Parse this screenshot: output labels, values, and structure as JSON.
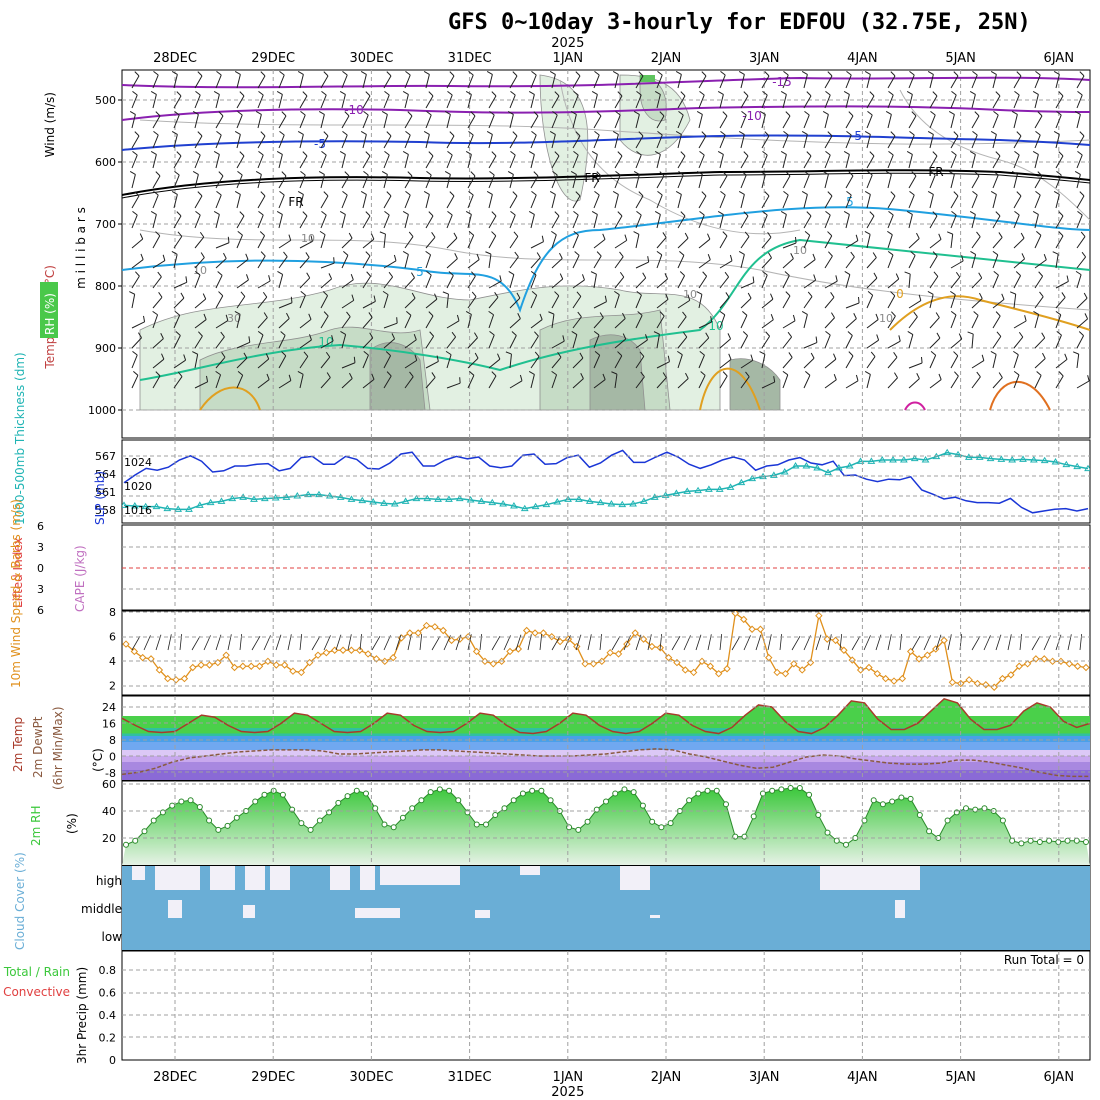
{
  "title": "GFS 0~10day 3-hourly for EDFOU (32.75E, 25N)",
  "colors": {
    "grid": "#a0a0a0",
    "rh_light": "#e2f0e2",
    "rh_mid": "#c6dcc6",
    "rh_dark": "#a5b8a5",
    "slp": "#1a36d6",
    "thickness": "#20b4b4",
    "wind10": "#e0901c",
    "barb": "#202020",
    "rh2m": "#3cc83c",
    "cloud": "#6aaed6",
    "temp_red": "#a83a2a",
    "dewpt": "#8a5a40"
  },
  "chart_data": [
    {
      "id": "upper",
      "type": "contour",
      "ylabel": "m i l l i b a r s",
      "side_labels": [
        "Wind (m/s)",
        "Temperature (°C)",
        "RH (%)"
      ],
      "y_ticks": [
        "500",
        "600",
        "700",
        "800",
        "900",
        "1000"
      ],
      "isotherm_labels": [
        "-15",
        "-10",
        "-10",
        "-5",
        "-5",
        "FR",
        "FR",
        "FR",
        "5",
        "5",
        "10",
        "10",
        "0"
      ],
      "rh_labels": [
        "10",
        "10",
        "10",
        "10",
        "30",
        "10"
      ]
    },
    {
      "id": "slp",
      "type": "line",
      "ylabel_left": "1000-500mb Thickness (dm)",
      "ylabel_right": "SLP (mb)",
      "left_ticks": [
        "567",
        "564",
        "561",
        "558"
      ],
      "right_ticks": [
        "1024",
        "1020",
        "1016"
      ],
      "series": [
        {
          "name": "SLP (mb)",
          "values": [
            1020.2,
            1021.5,
            1022.6,
            1022.3,
            1022.8,
            1024,
            1024.7,
            1023.8,
            1022,
            1022.2,
            1023,
            1023,
            1023.3,
            1023.4,
            1022.2,
            1022.6,
            1024.4,
            1024.6,
            1023.3,
            1023.3,
            1024.6,
            1024.1,
            1022.6,
            1022.5,
            1023.5,
            1025,
            1025.3,
            1023,
            1023,
            1024,
            1024.6,
            1024.2,
            1024.5,
            1023,
            1022.7,
            1023,
            1024.8,
            1025,
            1023.3,
            1023.4,
            1024.4,
            1024.8,
            1022.8,
            1023.5,
            1024.8,
            1025.6,
            1023.6,
            1023.6,
            1024.5,
            1025.3,
            1024.5,
            1023.3,
            1022.6,
            1023.2,
            1024,
            1024.5,
            1024,
            1022.3,
            1023,
            1023.2,
            1024,
            1024.4,
            1023.5,
            1023.2,
            1023.8,
            1021.4,
            1021.5,
            1020.8,
            1020.4,
            1020.8,
            1020.7,
            1021.2,
            1019,
            1018.3,
            1017.5,
            1017.8,
            1017.2,
            1016.9,
            1016.9,
            1016.8,
            1017.6,
            1016.1,
            1015.2,
            1015.5,
            1015.8,
            1015.9,
            1015.5,
            1015.9
          ]
        },
        {
          "name": "1000-500mb Thickness (dm)",
          "values": [
            559.6,
            559.5,
            559.4,
            559.4,
            559.1,
            559,
            559,
            559.6,
            560,
            560.2,
            560.6,
            560.8,
            560.5,
            560.6,
            560.7,
            560.8,
            561,
            561.2,
            561.2,
            561,
            560.8,
            560.5,
            560.3,
            560.1,
            559.9,
            559.8,
            560.2,
            560.6,
            560.6,
            560.5,
            560.5,
            560.6,
            560.4,
            560.2,
            560,
            559.8,
            559.5,
            559.1,
            559.4,
            559.7,
            560.1,
            560.5,
            560.5,
            560.2,
            560,
            559.8,
            559.7,
            559.8,
            560.2,
            560.8,
            561.1,
            561.4,
            561.7,
            561.8,
            562,
            562,
            562.3,
            563,
            563.6,
            563.9,
            564.1,
            564.6,
            565.5,
            565.5,
            565.2,
            564.5,
            565.2,
            565.5,
            566.2,
            566.2,
            566.4,
            566.4,
            566.4,
            566.6,
            566.4,
            566.9,
            567.5,
            567.2,
            566.8,
            566.8,
            566.6,
            566.5,
            566.4,
            566.5,
            566.4,
            566.3,
            566.1,
            565.7,
            565.4,
            565.1
          ]
        }
      ]
    },
    {
      "id": "cape",
      "type": "line",
      "ylabel_left": "Lifted Index",
      "ylabel_right": "CAPE (J/kg)",
      "ticks": [
        "6",
        "3",
        "0",
        "3",
        "6"
      ]
    },
    {
      "id": "wind10",
      "type": "line",
      "ylabel": "10m Wind Speed & Barbs (m/s)",
      "ticks": [
        "8",
        "6",
        "4",
        "2"
      ],
      "ylim": [
        1.5,
        8
      ],
      "series": [
        {
          "name": "Speed",
          "values": [
            5.4,
            4.8,
            4.3,
            4.2,
            3.3,
            2.6,
            2.5,
            2.6,
            3.5,
            3.7,
            3.7,
            3.9,
            4.5,
            3.5,
            3.6,
            3.6,
            3.6,
            4,
            3.7,
            3.7,
            3.2,
            3.1,
            3.9,
            4.5,
            4.7,
            4.9,
            4.9,
            4.9,
            4.9,
            4.6,
            4.2,
            4,
            4.3,
            5.9,
            6.3,
            6.3,
            6.9,
            6.8,
            6.5,
            5.7,
            5.8,
            6,
            4.8,
            4,
            3.8,
            4,
            4.8,
            5,
            6.5,
            6.3,
            6.3,
            6,
            5.6,
            5.8,
            5.2,
            3.8,
            3.8,
            4,
            4.7,
            4.6,
            5.4,
            6.3,
            5.8,
            5.2,
            5.1,
            4.3,
            3.9,
            3.3,
            3.1,
            4,
            3.6,
            3,
            3.4,
            7.9,
            7.4,
            6.6,
            6.6,
            4.3,
            3.1,
            3,
            3.8,
            3.3,
            3.9,
            7.7,
            5.8,
            5.7,
            4.9,
            4.1,
            3.3,
            3.5,
            3,
            2.6,
            2.4,
            2.6,
            4.8,
            4.2,
            4.5,
            5,
            5.7,
            2.3,
            2.2,
            2.5,
            2.2,
            2.1,
            1.9,
            2.6,
            2.9,
            3.6,
            3.8,
            4.2,
            4.2,
            4,
            4,
            3.8,
            3.6,
            3.5
          ]
        }
      ]
    },
    {
      "id": "temp",
      "type": "area",
      "ylabel": "2m Temp 2m DewPt (6hr Min/Max) (°C)",
      "ticks": [
        "24",
        "16",
        "8",
        "0",
        "-8"
      ],
      "ylim": [
        -14,
        30
      ],
      "series": [
        {
          "name": "2m Temp",
          "values": [
            18.5,
            15,
            12,
            11.5,
            12,
            16,
            20,
            19,
            15,
            12,
            11.5,
            12,
            16,
            21,
            20,
            16,
            12,
            11.5,
            12,
            16,
            21,
            20,
            15,
            12,
            11.5,
            12,
            16,
            21,
            20,
            15,
            11.5,
            11,
            12,
            16,
            21,
            20,
            15,
            12,
            11,
            12,
            16,
            21,
            20,
            15,
            12,
            11,
            14,
            20,
            25,
            24,
            17,
            12,
            11,
            14,
            20,
            27,
            26,
            18,
            13,
            13,
            16,
            22,
            28,
            26,
            18,
            13,
            13,
            15,
            22,
            26,
            24,
            17,
            14,
            16
          ]
        },
        {
          "name": "2m DewPt",
          "values": [
            -9,
            -8,
            -6,
            -3,
            -1,
            0,
            1,
            2,
            2.5,
            3,
            3,
            3,
            2.5,
            1,
            1,
            1.5,
            2,
            2.5,
            3,
            3,
            2.5,
            2,
            1.5,
            1,
            0.5,
            0,
            0,
            0,
            0.5,
            1,
            2,
            3,
            3.5,
            3,
            1,
            -0.5,
            -2.5,
            -4.5,
            -6,
            -5.5,
            -3,
            -0.5,
            0.5,
            0,
            -1.5,
            -2.5,
            -3.5,
            -4,
            -4,
            -3.5,
            -2,
            -2,
            -3,
            -4.5,
            -6,
            -8,
            -9.5,
            -10,
            -10
          ]
        }
      ]
    },
    {
      "id": "rh2m",
      "type": "area",
      "ylabel": "2m RH (%)",
      "ticks": [
        "60",
        "40",
        "20"
      ],
      "ylim": [
        5,
        62
      ],
      "series": [
        {
          "name": "2m RH",
          "values": [
            15,
            18,
            25,
            33,
            39,
            44,
            47,
            48,
            43,
            33,
            26,
            29,
            35,
            40,
            47,
            52,
            55,
            52,
            41,
            31,
            26,
            33,
            39,
            46,
            51,
            55,
            53,
            42,
            30,
            28,
            35,
            42,
            48,
            54,
            56,
            55,
            48,
            39,
            30,
            30,
            37,
            42,
            48,
            53,
            55,
            55,
            48,
            40,
            28,
            26,
            32,
            41,
            47,
            53,
            56,
            54,
            44,
            32,
            28,
            31,
            40,
            48,
            53,
            55,
            55,
            45,
            21,
            21,
            36,
            53,
            55,
            56,
            57,
            57,
            52,
            37,
            24,
            18,
            15,
            20,
            33,
            48,
            45,
            47,
            50,
            49,
            37,
            25,
            20,
            33,
            39,
            42,
            41,
            42,
            40,
            33,
            18,
            16,
            18,
            17,
            18,
            17,
            18,
            18,
            17
          ]
        }
      ]
    },
    {
      "id": "cloud",
      "type": "heatmap",
      "ylabel": "Cloud Cover (%)",
      "levels": [
        "high",
        "middle",
        "low"
      ]
    },
    {
      "id": "precip",
      "type": "bar",
      "ylabel": "3hr Precip (mm)",
      "side_label_1": "Total / Rain",
      "side_label_2": "Convective",
      "run_total": "Run Total = 0",
      "ticks": [
        "0.8",
        "0.6",
        "0.4",
        "0.2",
        "0"
      ],
      "ylim": [
        0,
        0.9
      ]
    }
  ],
  "x_axis": {
    "days": [
      "28DEC",
      "29DEC",
      "30DEC",
      "31DEC",
      "1JAN",
      "2JAN",
      "3JAN",
      "4JAN",
      "5JAN",
      "6JAN"
    ],
    "year": "2025"
  }
}
